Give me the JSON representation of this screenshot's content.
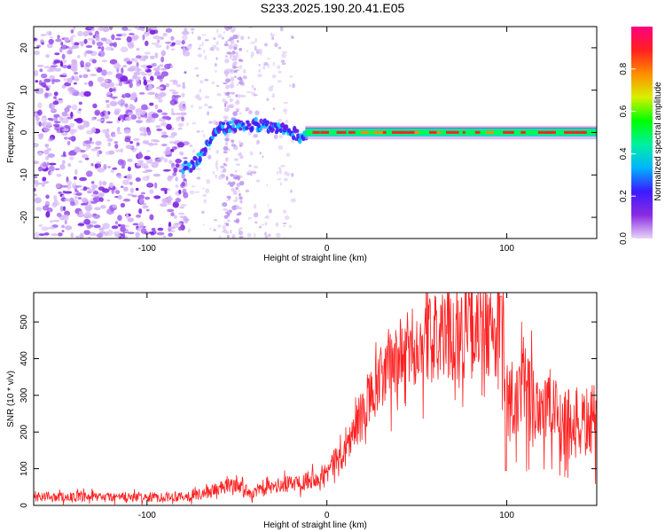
{
  "title": "S233.2025.190.20.41.E05",
  "chart_data": [
    {
      "type": "heatmap",
      "xlabel": "Height of straight line (km)",
      "ylabel": "Frequency (Hz)",
      "xlim": [
        -163,
        150
      ],
      "ylim": [
        -25,
        25
      ],
      "xticks": [
        -100,
        0,
        100
      ],
      "yticks": [
        -20,
        -10,
        0,
        10,
        20
      ],
      "colorbar": {
        "label": "Normalized spectral amplitude",
        "range": [
          0,
          1
        ],
        "ticks": [
          "0.0",
          "0.2",
          "0.4",
          "0.6",
          "0.8"
        ],
        "stops": [
          "#e8d4f8",
          "#8a2be2",
          "#3a1aff",
          "#00b4ff",
          "#00f0a0",
          "#00ff00",
          "#d8f000",
          "#ff8c00",
          "#ff2020",
          "#ff0080"
        ]
      },
      "ridge": [
        {
          "x": -75,
          "y": -8
        },
        {
          "x": -68,
          "y": -4
        },
        {
          "x": -60,
          "y": 1
        },
        {
          "x": -50,
          "y": 1.5
        },
        {
          "x": -40,
          "y": 2
        },
        {
          "x": -30,
          "y": 1
        },
        {
          "x": -20,
          "y": 0.3
        },
        {
          "x": -14,
          "y": -1.5
        },
        {
          "x": -10,
          "y": 0
        },
        {
          "x": 0,
          "y": 0
        },
        {
          "x": 150,
          "y": 0
        }
      ],
      "noise_region_km": [
        -163,
        -78
      ]
    },
    {
      "type": "line",
      "xlabel": "Height of straight line (km)",
      "ylabel": "SNR (10 * v/v)",
      "xlim": [
        -163,
        150
      ],
      "ylim": [
        0,
        580
      ],
      "xticks": [
        -100,
        0,
        100
      ],
      "yticks": [
        0,
        100,
        200,
        300,
        400,
        500
      ],
      "series": [
        {
          "color": "#ff2020",
          "x": [
            -163,
            -140,
            -120,
            -100,
            -80,
            -70,
            -60,
            -50,
            -45,
            -40,
            -30,
            -20,
            -10,
            0,
            10,
            20,
            30,
            40,
            50,
            60,
            70,
            80,
            90,
            92,
            95,
            98,
            100,
            105,
            110,
            120,
            130,
            140,
            150
          ],
          "y": [
            25,
            22,
            22,
            22,
            25,
            30,
            45,
            60,
            40,
            35,
            50,
            60,
            70,
            90,
            150,
            250,
            340,
            400,
            435,
            455,
            465,
            470,
            470,
            460,
            480,
            420,
            280,
            260,
            300,
            270,
            240,
            220,
            230
          ]
        }
      ]
    }
  ]
}
